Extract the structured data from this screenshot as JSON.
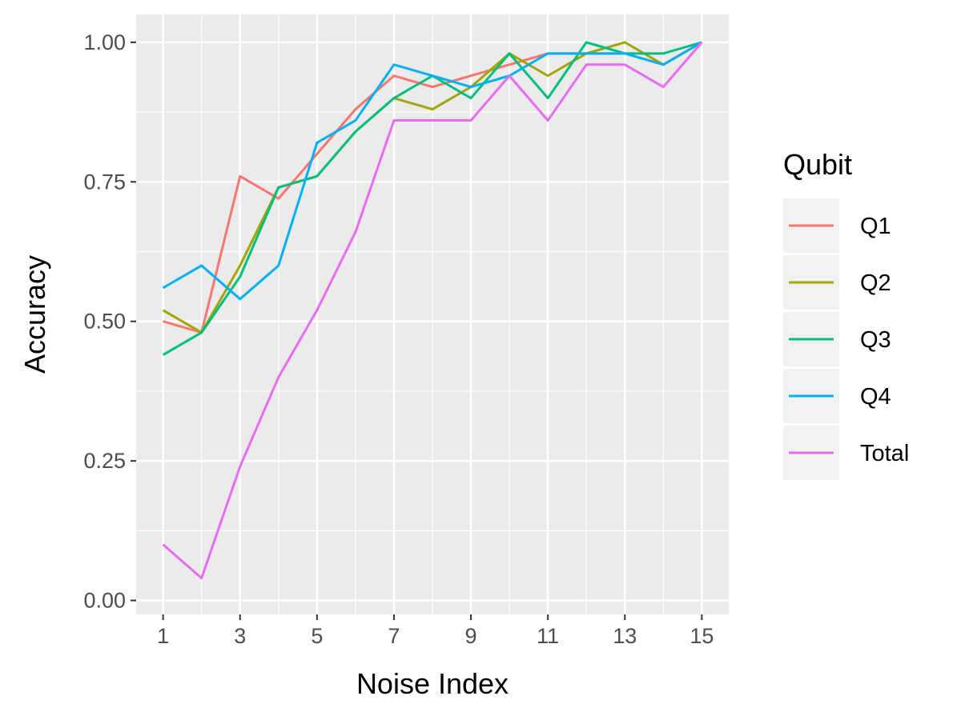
{
  "chart_data": {
    "type": "line",
    "xlabel": "Noise Index",
    "ylabel": "Accuracy",
    "x": [
      1,
      2,
      3,
      4,
      5,
      6,
      7,
      8,
      9,
      10,
      11,
      12,
      13,
      14,
      15
    ],
    "xlim": [
      0.3,
      15.7
    ],
    "ylim": [
      -0.025,
      1.05
    ],
    "x_ticks": [
      1,
      3,
      5,
      7,
      9,
      11,
      13,
      15
    ],
    "x_tick_labels": [
      "1",
      "3",
      "5",
      "7",
      "9",
      "11",
      "13",
      "15"
    ],
    "y_ticks": [
      0,
      0.25,
      0.5,
      0.75,
      1
    ],
    "y_tick_labels": [
      "0.00",
      "0.25",
      "0.50",
      "0.75",
      "1.00"
    ],
    "grid": true,
    "legend_title": "Qubit",
    "legend_position": "right",
    "series": [
      {
        "name": "Q1",
        "color": "#F8766D",
        "values": [
          0.5,
          0.48,
          0.76,
          0.72,
          0.8,
          0.88,
          0.94,
          0.92,
          0.94,
          0.96,
          0.98,
          0.98,
          0.98,
          0.96,
          1.0
        ]
      },
      {
        "name": "Q2",
        "color": "#A3A500",
        "values": [
          0.52,
          0.48,
          0.6,
          0.74,
          0.76,
          0.84,
          0.9,
          0.88,
          0.92,
          0.98,
          0.94,
          0.98,
          1.0,
          0.96,
          1.0
        ]
      },
      {
        "name": "Q3",
        "color": "#00BF7D",
        "values": [
          0.44,
          0.48,
          0.58,
          0.74,
          0.76,
          0.84,
          0.9,
          0.94,
          0.9,
          0.98,
          0.9,
          1.0,
          0.98,
          0.98,
          1.0
        ]
      },
      {
        "name": "Q4",
        "color": "#00B0F6",
        "values": [
          0.56,
          0.6,
          0.54,
          0.6,
          0.82,
          0.86,
          0.96,
          0.94,
          0.92,
          0.94,
          0.98,
          0.98,
          0.98,
          0.96,
          1.0
        ]
      },
      {
        "name": "Total",
        "color": "#E76BF3",
        "values": [
          0.1,
          0.04,
          0.24,
          0.4,
          0.52,
          0.66,
          0.86,
          0.86,
          0.86,
          0.94,
          0.86,
          0.96,
          0.96,
          0.92,
          1.0
        ]
      }
    ]
  }
}
